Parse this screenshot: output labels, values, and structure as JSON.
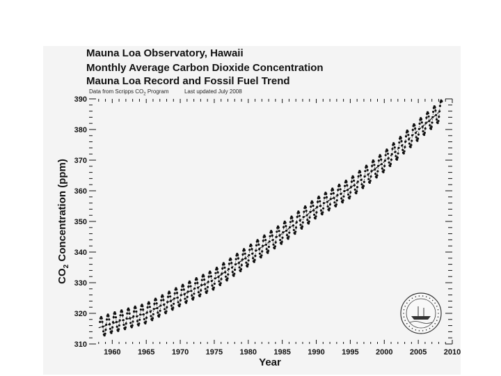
{
  "chart_data": {
    "type": "scatter",
    "title": "Mauna Loa Observatory, Hawaii",
    "subtitle_lines": [
      "Monthly Average Carbon Dioxide Concentration",
      "Mauna Loa Record and Fossil Fuel Trend"
    ],
    "source_note": "Data from Scripps CO",
    "source_note_sub": "2",
    "source_note_tail": " Program",
    "updated_note": "Last updated July 2008",
    "xlabel": "Year",
    "ylabel_prefix": "CO",
    "ylabel_sub": "2",
    "ylabel_suffix": " Concentration (ppm)",
    "xlim": [
      1957,
      2010
    ],
    "ylim": [
      310,
      390
    ],
    "xticks": [
      1960,
      1965,
      1970,
      1975,
      1980,
      1985,
      1990,
      1995,
      2000,
      2005,
      2010
    ],
    "xtick_labels": [
      "1960",
      "1965",
      "1970",
      "1975",
      "1980",
      "1985",
      "1990",
      "1995",
      "2000",
      "2005",
      "2010"
    ],
    "yticks": [
      310,
      320,
      330,
      340,
      350,
      360,
      370,
      380,
      390
    ],
    "ytick_labels": [
      "310",
      "320",
      "330",
      "340",
      "350",
      "360",
      "370",
      "380",
      "390"
    ],
    "series": [
      {
        "name": "Monthly average CO2",
        "style": "dots",
        "x_start": 1958.2,
        "x_end": 2008.5,
        "annual_mean": [
          [
            1958,
            315.3
          ],
          [
            1960,
            316.9
          ],
          [
            1965,
            320.0
          ],
          [
            1970,
            325.7
          ],
          [
            1975,
            331.1
          ],
          [
            1980,
            338.7
          ],
          [
            1985,
            346.1
          ],
          [
            1990,
            354.4
          ],
          [
            1995,
            360.9
          ],
          [
            2000,
            369.5
          ],
          [
            2005,
            379.8
          ],
          [
            2008,
            385.6
          ]
        ],
        "seasonal_amplitude_ppm": 3.2
      },
      {
        "name": "Fossil fuel trend",
        "style": "dashed line",
        "x": [
          1958,
          1965,
          1970,
          1975,
          1980,
          1985,
          1990,
          1995,
          2000,
          2005,
          2008
        ],
        "values": [
          315.3,
          320.0,
          325.7,
          331.1,
          338.7,
          346.1,
          354.4,
          360.9,
          369.5,
          379.8,
          385.6
        ]
      }
    ]
  },
  "logo": {
    "name": "Scripps Institution of Oceanography seal",
    "colors": {
      "ring": "#333333",
      "fill": "#f8f8f8"
    }
  },
  "colors": {
    "panel": "#f4f4f4",
    "ink": "#111111",
    "points": "#111111"
  }
}
